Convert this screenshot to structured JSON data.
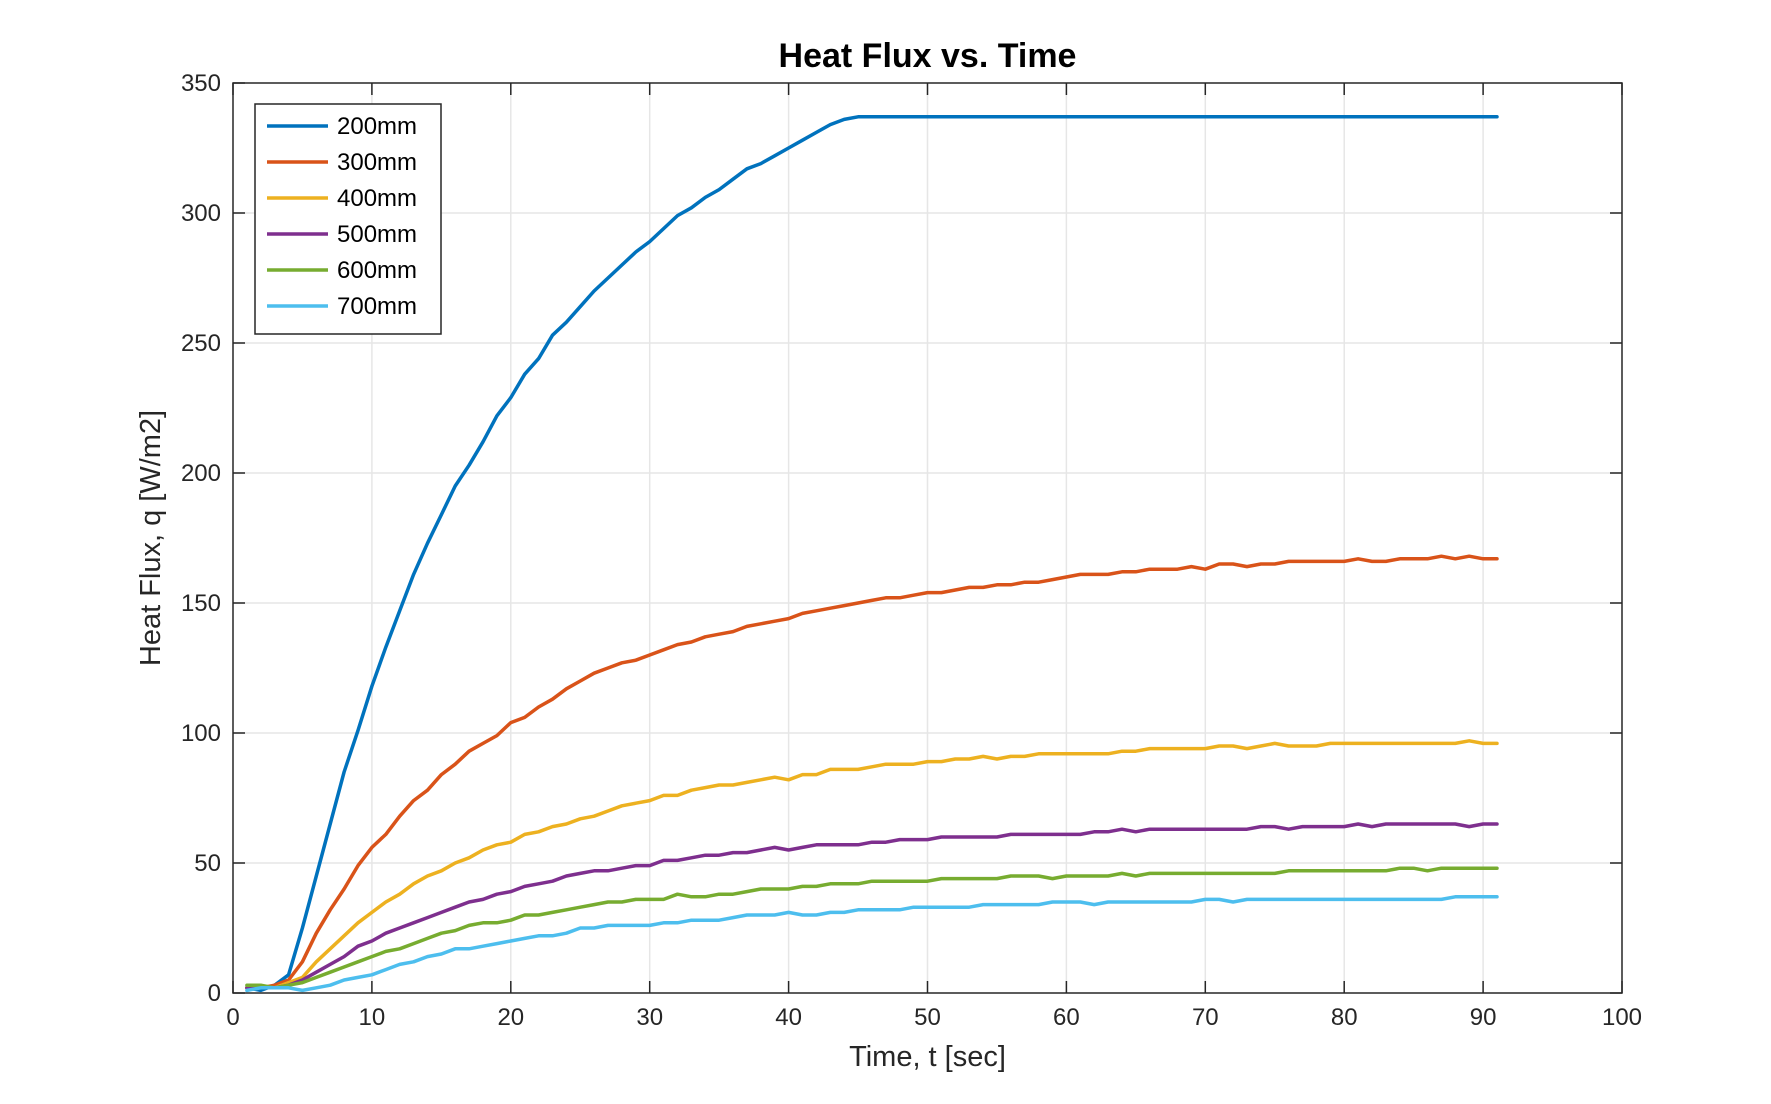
{
  "chart_data": {
    "type": "line",
    "title": "Heat Flux vs. Time",
    "xlabel": "Time, t [sec]",
    "ylabel": "Heat Flux, q [W/m2]",
    "xlim": [
      0,
      100
    ],
    "ylim": [
      0,
      350
    ],
    "xticks": [
      0,
      10,
      20,
      30,
      40,
      50,
      60,
      70,
      80,
      90,
      100
    ],
    "yticks": [
      0,
      50,
      100,
      150,
      200,
      250,
      300,
      350
    ],
    "grid": true,
    "legend_position": "top-left",
    "x": [
      1,
      2,
      3,
      4,
      5,
      6,
      7,
      8,
      9,
      10,
      11,
      12,
      13,
      14,
      15,
      16,
      17,
      18,
      19,
      20,
      21,
      22,
      23,
      24,
      25,
      26,
      27,
      28,
      29,
      30,
      31,
      32,
      33,
      34,
      35,
      36,
      37,
      38,
      39,
      40,
      41,
      42,
      43,
      44,
      45,
      46,
      47,
      48,
      49,
      50,
      51,
      52,
      53,
      54,
      55,
      56,
      57,
      58,
      59,
      60,
      61,
      62,
      63,
      64,
      65,
      66,
      67,
      68,
      69,
      70,
      71,
      72,
      73,
      74,
      75,
      76,
      77,
      78,
      79,
      80,
      81,
      82,
      83,
      84,
      85,
      86,
      87,
      88,
      89,
      90,
      91
    ],
    "series": [
      {
        "name": "200mm",
        "color": "#0072BD",
        "values": [
          2,
          1,
          3,
          7,
          25,
          45,
          65,
          85,
          101,
          118,
          133,
          147,
          161,
          173,
          184,
          195,
          203,
          212,
          222,
          229,
          238,
          244,
          253,
          258,
          264,
          270,
          275,
          280,
          285,
          289,
          294,
          299,
          302,
          306,
          309,
          313,
          317,
          319,
          322,
          325,
          328,
          331,
          334,
          336,
          337,
          337,
          337,
          337,
          337,
          337,
          337,
          337,
          337,
          337,
          337,
          337,
          337,
          337,
          337,
          337,
          337,
          337,
          337,
          337,
          337,
          337,
          337,
          337,
          337,
          337,
          337,
          337,
          337,
          337,
          337,
          337,
          337,
          337,
          337,
          337,
          337,
          337,
          337,
          337,
          337,
          337,
          337,
          337,
          337,
          337,
          337
        ]
      },
      {
        "name": "300mm",
        "color": "#D95319",
        "values": [
          2,
          2,
          3,
          5,
          12,
          23,
          32,
          40,
          49,
          56,
          61,
          68,
          74,
          78,
          84,
          88,
          93,
          96,
          99,
          104,
          106,
          110,
          113,
          117,
          120,
          123,
          125,
          127,
          128,
          130,
          132,
          134,
          135,
          137,
          138,
          139,
          141,
          142,
          143,
          144,
          146,
          147,
          148,
          149,
          150,
          151,
          152,
          152,
          153,
          154,
          154,
          155,
          156,
          156,
          157,
          157,
          158,
          158,
          159,
          160,
          161,
          161,
          161,
          162,
          162,
          163,
          163,
          163,
          164,
          163,
          165,
          165,
          164,
          165,
          165,
          166,
          166,
          166,
          166,
          166,
          167,
          166,
          166,
          167,
          167,
          167,
          168,
          167,
          168,
          167,
          167
        ]
      },
      {
        "name": "400mm",
        "color": "#EDB120",
        "values": [
          2,
          2,
          2,
          4,
          6,
          12,
          17,
          22,
          27,
          31,
          35,
          38,
          42,
          45,
          47,
          50,
          52,
          55,
          57,
          58,
          61,
          62,
          64,
          65,
          67,
          68,
          70,
          72,
          73,
          74,
          76,
          76,
          78,
          79,
          80,
          80,
          81,
          82,
          83,
          82,
          84,
          84,
          86,
          86,
          86,
          87,
          88,
          88,
          88,
          89,
          89,
          90,
          90,
          91,
          90,
          91,
          91,
          92,
          92,
          92,
          92,
          92,
          92,
          93,
          93,
          94,
          94,
          94,
          94,
          94,
          95,
          95,
          94,
          95,
          96,
          95,
          95,
          95,
          96,
          96,
          96,
          96,
          96,
          96,
          96,
          96,
          96,
          96,
          97,
          96,
          96
        ]
      },
      {
        "name": "500mm",
        "color": "#7E2F8E",
        "values": [
          2,
          2,
          2,
          3,
          5,
          8,
          11,
          14,
          18,
          20,
          23,
          25,
          27,
          29,
          31,
          33,
          35,
          36,
          38,
          39,
          41,
          42,
          43,
          45,
          46,
          47,
          47,
          48,
          49,
          49,
          51,
          51,
          52,
          53,
          53,
          54,
          54,
          55,
          56,
          55,
          56,
          57,
          57,
          57,
          57,
          58,
          58,
          59,
          59,
          59,
          60,
          60,
          60,
          60,
          60,
          61,
          61,
          61,
          61,
          61,
          61,
          62,
          62,
          63,
          62,
          63,
          63,
          63,
          63,
          63,
          63,
          63,
          63,
          64,
          64,
          63,
          64,
          64,
          64,
          64,
          65,
          64,
          65,
          65,
          65,
          65,
          65,
          65,
          64,
          65,
          65
        ]
      },
      {
        "name": "600mm",
        "color": "#77AC30",
        "values": [
          3,
          3,
          2,
          3,
          4,
          6,
          8,
          10,
          12,
          14,
          16,
          17,
          19,
          21,
          23,
          24,
          26,
          27,
          27,
          28,
          30,
          30,
          31,
          32,
          33,
          34,
          35,
          35,
          36,
          36,
          36,
          38,
          37,
          37,
          38,
          38,
          39,
          40,
          40,
          40,
          41,
          41,
          42,
          42,
          42,
          43,
          43,
          43,
          43,
          43,
          44,
          44,
          44,
          44,
          44,
          45,
          45,
          45,
          44,
          45,
          45,
          45,
          45,
          46,
          45,
          46,
          46,
          46,
          46,
          46,
          46,
          46,
          46,
          46,
          46,
          47,
          47,
          47,
          47,
          47,
          47,
          47,
          47,
          48,
          48,
          47,
          48,
          48,
          48,
          48,
          48
        ]
      },
      {
        "name": "700mm",
        "color": "#4DBEEE",
        "values": [
          1,
          2,
          2,
          2,
          1,
          2,
          3,
          5,
          6,
          7,
          9,
          11,
          12,
          14,
          15,
          17,
          17,
          18,
          19,
          20,
          21,
          22,
          22,
          23,
          25,
          25,
          26,
          26,
          26,
          26,
          27,
          27,
          28,
          28,
          28,
          29,
          30,
          30,
          30,
          31,
          30,
          30,
          31,
          31,
          32,
          32,
          32,
          32,
          33,
          33,
          33,
          33,
          33,
          34,
          34,
          34,
          34,
          34,
          35,
          35,
          35,
          34,
          35,
          35,
          35,
          35,
          35,
          35,
          35,
          36,
          36,
          35,
          36,
          36,
          36,
          36,
          36,
          36,
          36,
          36,
          36,
          36,
          36,
          36,
          36,
          36,
          36,
          37,
          37,
          37,
          37
        ]
      }
    ]
  }
}
